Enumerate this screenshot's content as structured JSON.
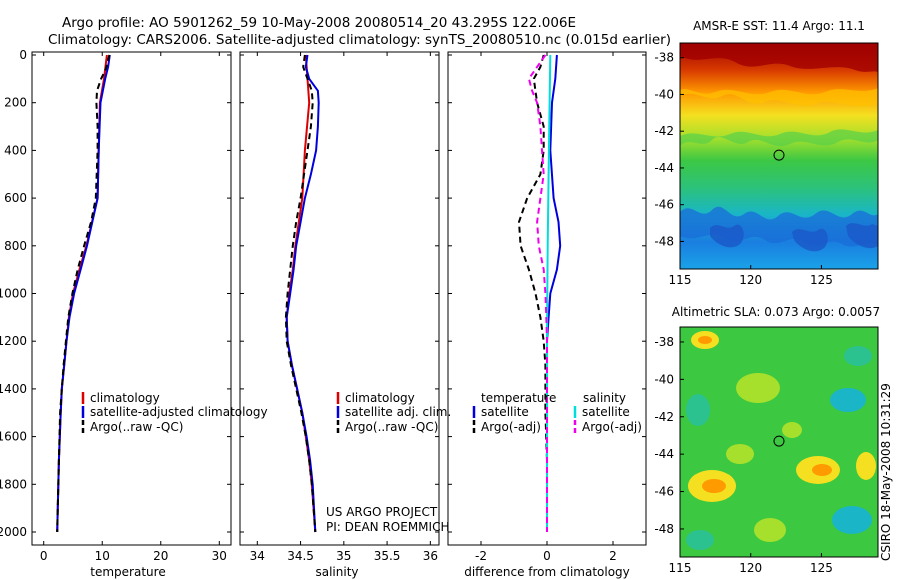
{
  "header": {
    "line1": "Argo profile: AO 5901262_59 10-May-2008 20080514_20 43.295S 122.006E",
    "line2": "Climatology: CARS2006. Satellite-adjusted climatology: synTS_20080510.nc (0.015d earlier)"
  },
  "footer_note": {
    "line1": "US ARGO PROJECT",
    "line2": "PI: DEAN ROEMMICH"
  },
  "side_label": "CSIRO 18-May-2008 10:31:29",
  "colors": {
    "red": "#dd0000",
    "blue": "#0000dd",
    "black": "#000000",
    "cyan": "#00dddd",
    "magenta": "#ee00ee"
  },
  "chart_data": [
    {
      "type": "line",
      "name": "temperature-panel",
      "xlabel": "temperature",
      "ylabel": "",
      "xlim": [
        -2,
        32
      ],
      "ylim": [
        0,
        2050
      ],
      "y_inverted": true,
      "xticks": [
        0,
        10,
        20,
        30
      ],
      "xtick_labels": [
        "0",
        "10",
        "20",
        "30"
      ],
      "yticks": [
        0,
        200,
        400,
        600,
        800,
        1000,
        1200,
        1400,
        1600,
        1800,
        2000
      ],
      "ytick_labels": [
        "0",
        "200",
        "400",
        "600",
        "800",
        "1000",
        "1200",
        "1400",
        "1600",
        "1800",
        "2000"
      ],
      "legend": {
        "placement": "lower-middle",
        "entries": [
          "climatology",
          "satellite-adjusted climatology",
          "Argo(..raw -QC)"
        ]
      },
      "series": [
        {
          "name": "climatology",
          "color": "red",
          "dash": false,
          "depth": [
            0,
            100,
            200,
            400,
            600,
            800,
            900,
            1000,
            1100,
            1200,
            1300,
            1400,
            1500,
            1700,
            2000
          ],
          "values": [
            10.8,
            10.3,
            9.6,
            9.4,
            9.2,
            7.3,
            6.1,
            5.0,
            4.3,
            3.9,
            3.5,
            3.1,
            2.9,
            2.6,
            2.3
          ]
        },
        {
          "name": "satellite-adjusted climatology",
          "color": "blue",
          "dash": false,
          "depth": [
            0,
            50,
            100,
            200,
            400,
            600,
            800,
            900,
            1000,
            1100,
            1200,
            1300,
            1400,
            1500,
            1700,
            2000
          ],
          "values": [
            11.3,
            11.0,
            10.5,
            9.7,
            9.4,
            9.2,
            7.4,
            6.3,
            5.2,
            4.4,
            3.9,
            3.5,
            3.1,
            2.9,
            2.6,
            2.3
          ]
        },
        {
          "name": "Argo(..raw -QC)",
          "color": "black",
          "dash": true,
          "depth": [
            0,
            60,
            100,
            150,
            200,
            300,
            400,
            600,
            700,
            800,
            900,
            1000,
            1100,
            1200,
            1300,
            1400,
            1500,
            1700,
            2000
          ],
          "values": [
            11.2,
            10.6,
            9.8,
            9.1,
            9.0,
            9.2,
            9.2,
            8.9,
            8.1,
            6.9,
            5.8,
            4.9,
            4.2,
            3.8,
            3.4,
            3.1,
            2.8,
            2.6,
            2.3
          ]
        }
      ]
    },
    {
      "type": "line",
      "name": "salinity-panel",
      "xlabel": "salinity",
      "xlim": [
        33.8,
        36.1
      ],
      "ylim": [
        0,
        2050
      ],
      "y_inverted": true,
      "xticks": [
        34,
        34.5,
        35,
        35.5,
        36
      ],
      "xtick_labels": [
        "34",
        "34.5",
        "35",
        "35.5",
        "36"
      ],
      "legend": {
        "placement": "lower-middle",
        "entries": [
          "climatology",
          "satellite adj. clim.",
          "Argo(..raw -QC)"
        ]
      },
      "series": [
        {
          "name": "climatology",
          "color": "red",
          "dash": false,
          "depth": [
            0,
            100,
            200,
            400,
            600,
            800,
            900,
            1000,
            1100,
            1200,
            1300,
            1400,
            1500,
            1600,
            1700,
            1800,
            2000
          ],
          "values": [
            34.56,
            34.58,
            34.6,
            34.55,
            34.52,
            34.44,
            34.41,
            34.37,
            34.34,
            34.35,
            34.4,
            34.46,
            34.52,
            34.56,
            34.6,
            34.63,
            34.67
          ]
        },
        {
          "name": "satellite adj. clim.",
          "color": "blue",
          "dash": false,
          "depth": [
            0,
            50,
            100,
            150,
            200,
            300,
            400,
            500,
            600,
            700,
            800,
            900,
            1000,
            1100,
            1200,
            1300,
            1400,
            1500,
            1600,
            1700,
            1800,
            2000
          ],
          "values": [
            34.58,
            34.56,
            34.6,
            34.7,
            34.71,
            34.7,
            34.68,
            34.62,
            34.55,
            34.5,
            34.45,
            34.42,
            34.38,
            34.34,
            34.35,
            34.4,
            34.46,
            34.52,
            34.57,
            34.61,
            34.64,
            34.67
          ]
        },
        {
          "name": "Argo(..raw -QC)",
          "color": "black",
          "dash": true,
          "depth": [
            0,
            50,
            100,
            150,
            200,
            300,
            400,
            600,
            700,
            800,
            900,
            1000,
            1100,
            1200,
            1300,
            1400,
            1500,
            1600,
            1700,
            1800,
            2000
          ],
          "values": [
            34.55,
            34.53,
            34.58,
            34.63,
            34.64,
            34.62,
            34.58,
            34.5,
            34.45,
            34.41,
            34.38,
            34.35,
            34.33,
            34.34,
            34.39,
            34.45,
            34.51,
            34.56,
            34.6,
            34.63,
            34.67
          ]
        }
      ]
    },
    {
      "type": "line",
      "name": "difference-panel",
      "xlabel": "difference from climatology",
      "xlim": [
        -3,
        3
      ],
      "ylim": [
        0,
        2050
      ],
      "y_inverted": true,
      "xticks": [
        -2,
        0,
        2
      ],
      "xtick_labels": [
        "-2",
        "0",
        "2"
      ],
      "legend": {
        "placement": "lower-middle",
        "column_headers": [
          "temperature",
          "salinity"
        ],
        "entries": [
          "satellite",
          "Argo(-adj)",
          "satellite",
          "Argo(-adj)"
        ]
      },
      "series": [
        {
          "name": "temperature satellite",
          "color": "blue",
          "dash": false,
          "depth": [
            0,
            100,
            200,
            400,
            600,
            700,
            800,
            900,
            1000,
            1100,
            1200,
            1400,
            1600,
            2000
          ],
          "values": [
            0.3,
            0.25,
            0.15,
            0.1,
            0.2,
            0.35,
            0.4,
            0.3,
            0.1,
            0.05,
            0.0,
            0.0,
            0.0,
            0.0
          ]
        },
        {
          "name": "temperature Argo(-adj)",
          "color": "black",
          "dash": true,
          "depth": [
            0,
            50,
            100,
            200,
            300,
            400,
            500,
            600,
            700,
            800,
            900,
            1000,
            1100,
            1200,
            1300,
            1500,
            1700,
            2000
          ],
          "values": [
            -0.1,
            -0.2,
            -0.4,
            -0.3,
            -0.1,
            -0.1,
            -0.2,
            -0.6,
            -0.85,
            -0.8,
            -0.55,
            -0.35,
            -0.2,
            -0.1,
            -0.05,
            -0.05,
            0.0,
            0.0
          ]
        },
        {
          "name": "salinity satellite",
          "color": "cyan",
          "dash": false,
          "depth": [
            0,
            200,
            500,
            800,
            1000,
            1200,
            1500,
            2000
          ],
          "values": [
            0.1,
            0.08,
            0.05,
            0.02,
            0.01,
            0.0,
            0.0,
            0.0
          ]
        },
        {
          "name": "salinity Argo(-adj)",
          "color": "magenta",
          "dash": true,
          "depth": [
            0,
            50,
            100,
            150,
            200,
            300,
            400,
            500,
            600,
            700,
            800,
            900,
            1000,
            1100,
            1200,
            1400,
            2000
          ],
          "values": [
            -0.05,
            -0.3,
            -0.55,
            -0.45,
            -0.3,
            -0.2,
            -0.15,
            -0.1,
            -0.2,
            -0.3,
            -0.25,
            -0.1,
            -0.05,
            -0.02,
            0.0,
            0.0,
            0.0
          ]
        }
      ]
    },
    {
      "type": "heatmap",
      "name": "sst-map",
      "title": "AMSR-E SST: 11.4 Argo: 11.1",
      "xlim": [
        115,
        129
      ],
      "ylim": [
        -49.5,
        -37.2
      ],
      "xticks": [
        115,
        120,
        125
      ],
      "xtick_labels": [
        "115",
        "120",
        "125"
      ],
      "yticks": [
        -38,
        -40,
        -42,
        -44,
        -46,
        -48
      ],
      "ytick_labels": [
        "-38",
        "-40",
        "-42",
        "-44",
        "-46",
        "-48"
      ],
      "marker": {
        "lon": 122.0,
        "lat": -43.3
      }
    },
    {
      "type": "heatmap",
      "name": "sla-map",
      "title": "Altimetric SLA: 0.073 Argo: 0.0057",
      "xlim": [
        115,
        129
      ],
      "ylim": [
        -49.5,
        -37.2
      ],
      "xticks": [
        115,
        120,
        125
      ],
      "xtick_labels": [
        "115",
        "120",
        "125"
      ],
      "yticks": [
        -38,
        -40,
        -42,
        -44,
        -46,
        -48
      ],
      "ytick_labels": [
        "-38",
        "-40",
        "-42",
        "-44",
        "-46",
        "-48"
      ],
      "marker": {
        "lon": 122.0,
        "lat": -43.3
      }
    }
  ]
}
